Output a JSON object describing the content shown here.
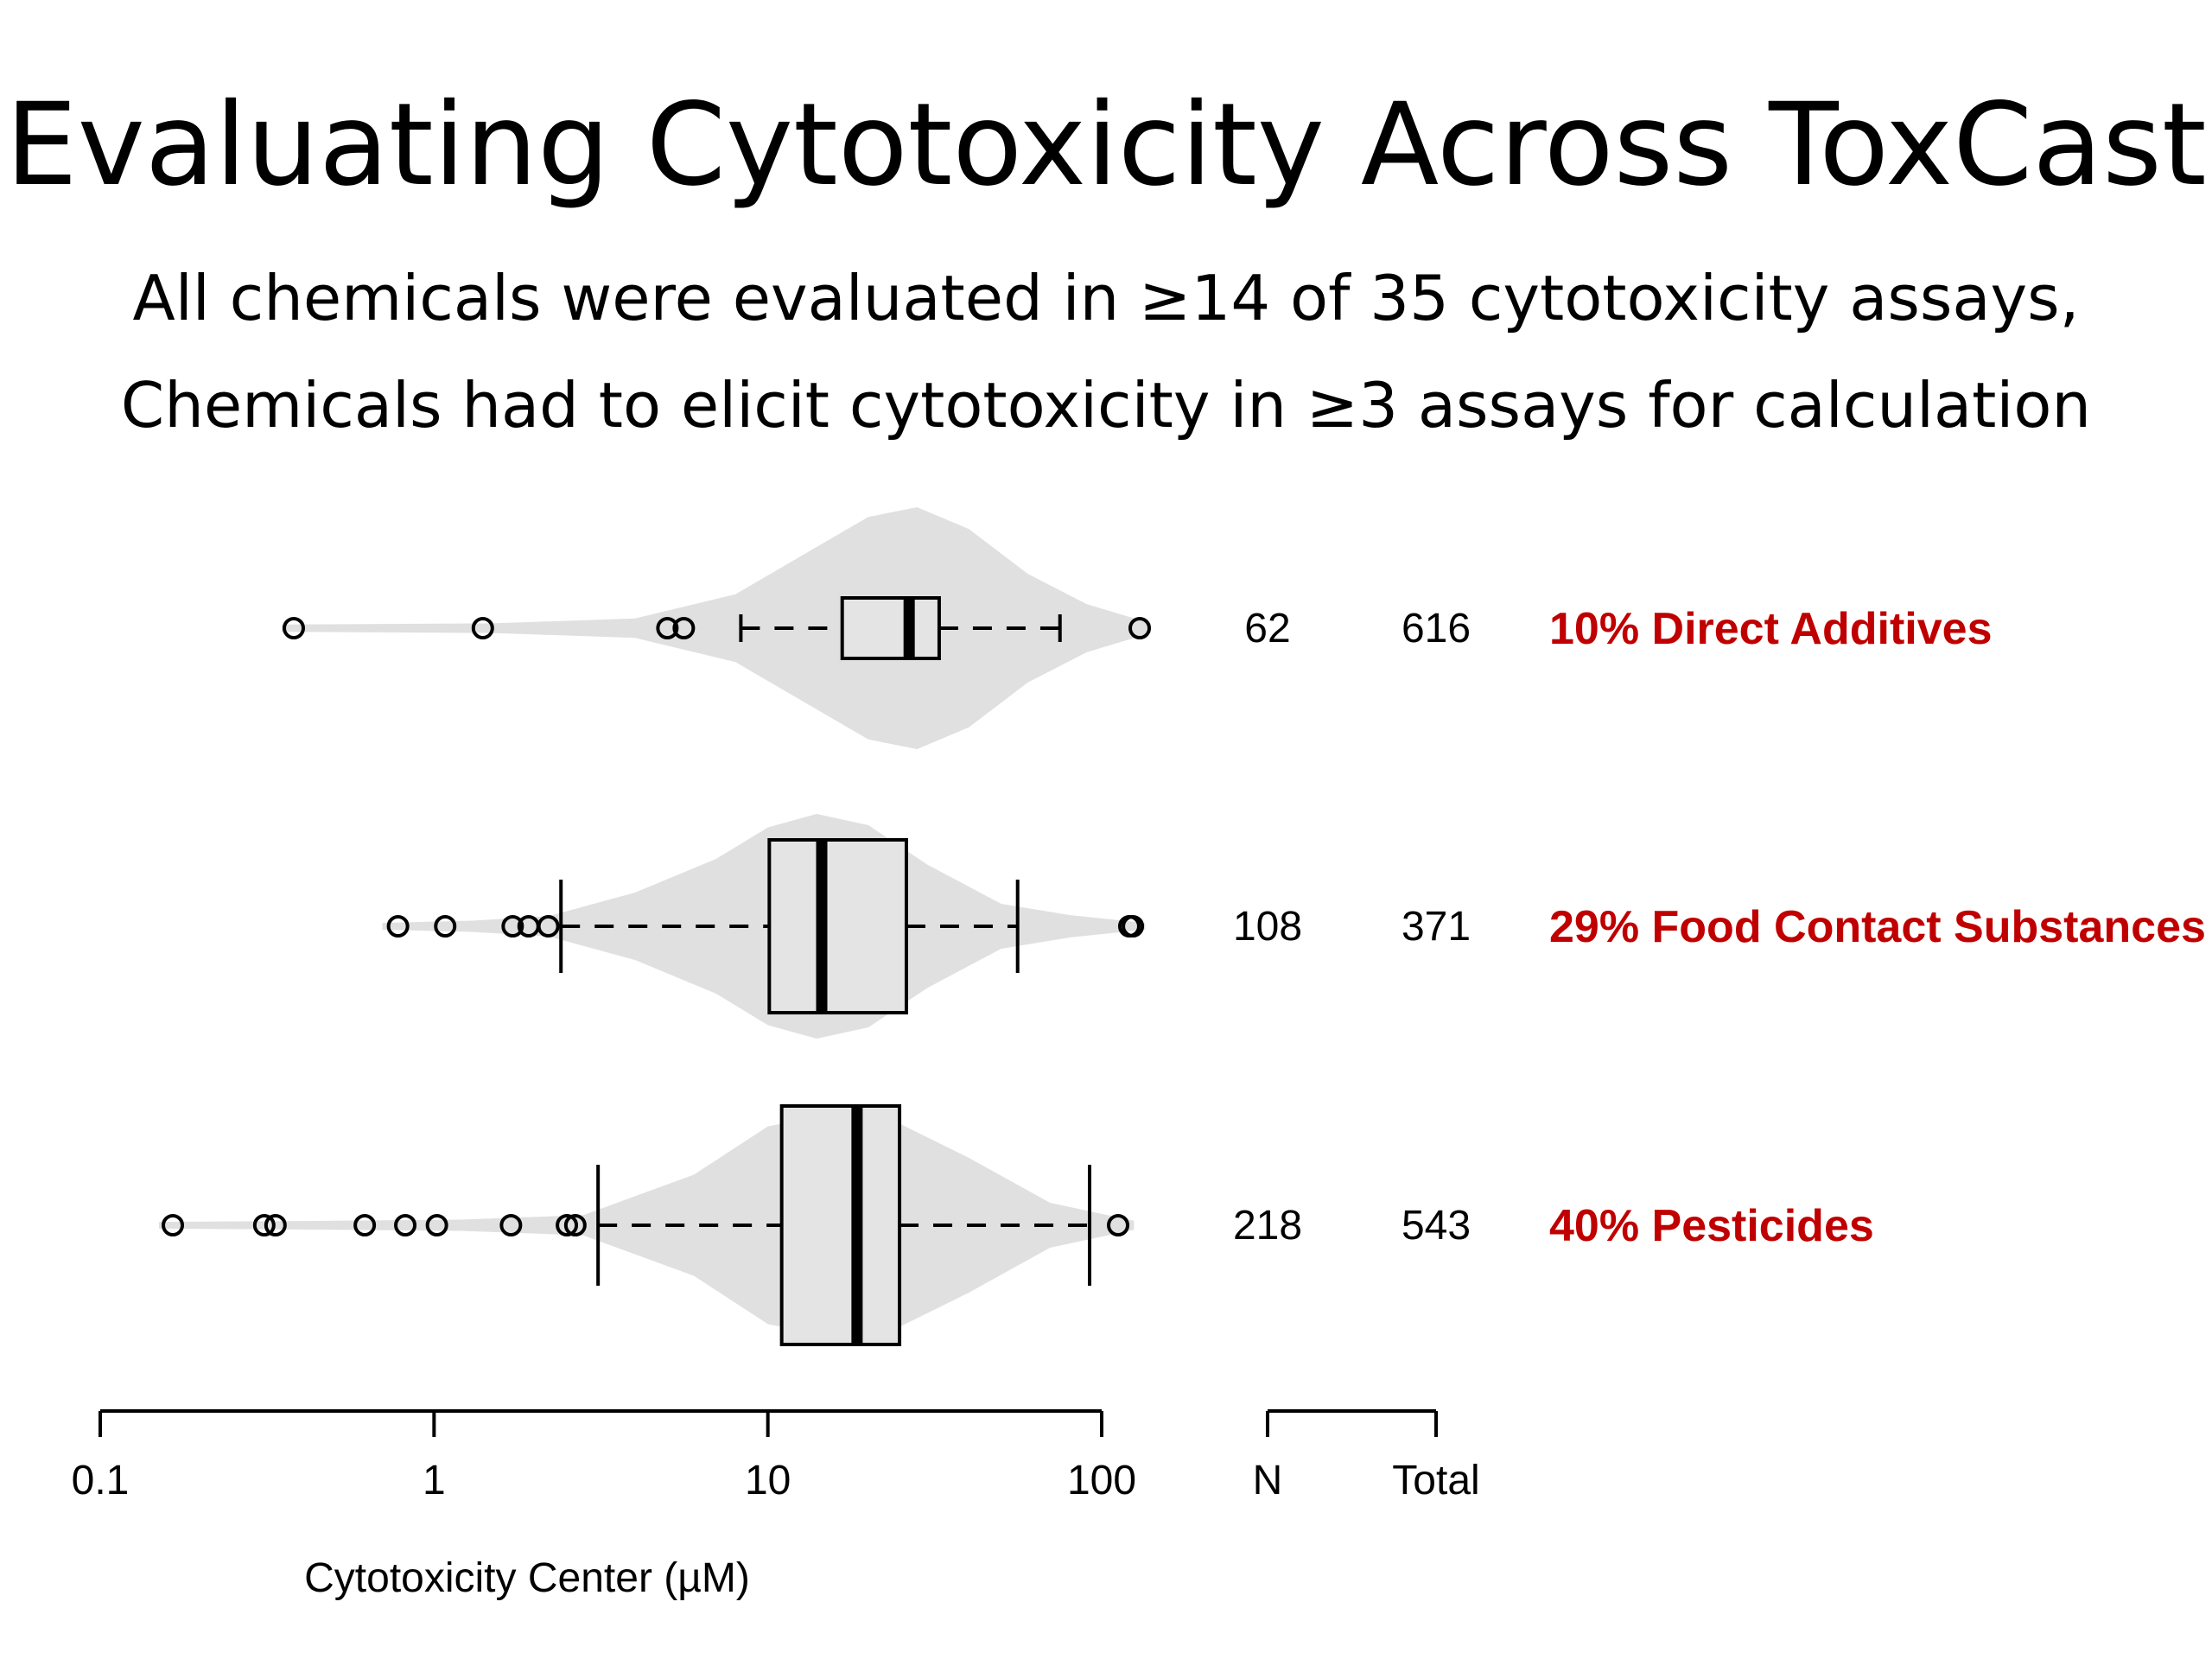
{
  "slide": {
    "title": "Evaluating Cytotoxicity Across ToxCast",
    "subtitle_lines": [
      "All chemicals were evaluated in ≥14 of 35 cytotoxicity assays,",
      "Chemicals had to elicit cytotoxicity in ≥3 assays for calculation"
    ]
  },
  "colors": {
    "violin_fill": "#e0e0e0",
    "box_fill": "#e4e4e4",
    "label_red": "#c00000",
    "ink": "#000000"
  },
  "chart_data": {
    "type": "violin-boxplot",
    "orientation": "horizontal",
    "x_scale": "log10",
    "xlabel": "Cytotoxicity Center (µM)",
    "xlim": [
      0.1,
      100
    ],
    "x_ticks": [
      0.1,
      1,
      10,
      100
    ],
    "x_tick_labels": [
      "0.1",
      "1",
      "10",
      "100"
    ],
    "table_headers": [
      "N",
      "Total"
    ],
    "series": [
      {
        "label": "10% Direct Additives",
        "n": "62",
        "total": "616",
        "whisker_low": 8.3,
        "q1": 16.7,
        "median": 26.5,
        "q3": 32.6,
        "whisker_high": 75.0,
        "outliers": [
          0.38,
          1.4,
          5.0,
          5.6,
          130
        ],
        "violin_density": [
          [
            0.35,
            0.03
          ],
          [
            1.5,
            0.04
          ],
          [
            4,
            0.08
          ],
          [
            8,
            0.28
          ],
          [
            13,
            0.62
          ],
          [
            20,
            0.92
          ],
          [
            28,
            1.0
          ],
          [
            40,
            0.82
          ],
          [
            60,
            0.45
          ],
          [
            90,
            0.2
          ],
          [
            140,
            0.04
          ]
        ]
      },
      {
        "label": "29% Food Contact Substances",
        "n": "108",
        "total": "371",
        "whisker_low": 2.4,
        "q1": 10.1,
        "median": 14.5,
        "q3": 26.0,
        "whisker_high": 56.0,
        "outliers": [
          0.78,
          1.08,
          1.72,
          1.92,
          2.2,
          121,
          124
        ],
        "violin_density": [
          [
            0.7,
            0.03
          ],
          [
            1.3,
            0.05
          ],
          [
            2.2,
            0.09
          ],
          [
            4,
            0.3
          ],
          [
            7,
            0.6
          ],
          [
            10,
            0.88
          ],
          [
            14,
            1.0
          ],
          [
            20,
            0.9
          ],
          [
            30,
            0.55
          ],
          [
            50,
            0.2
          ],
          [
            80,
            0.1
          ],
          [
            135,
            0.03
          ]
        ]
      },
      {
        "label": "40% Pesticides",
        "n": "218",
        "total": "543",
        "whisker_low": 3.1,
        "q1": 11.0,
        "median": 18.5,
        "q3": 24.8,
        "whisker_high": 92.0,
        "outliers": [
          0.165,
          0.31,
          0.335,
          0.62,
          0.82,
          1.02,
          1.7,
          2.5,
          2.65,
          112
        ],
        "violin_density": [
          [
            0.15,
            0.03
          ],
          [
            0.5,
            0.04
          ],
          [
            1.2,
            0.05
          ],
          [
            2.8,
            0.09
          ],
          [
            6,
            0.45
          ],
          [
            10,
            0.88
          ],
          [
            16,
            1.0
          ],
          [
            25,
            0.9
          ],
          [
            40,
            0.6
          ],
          [
            70,
            0.2
          ],
          [
            125,
            0.04
          ]
        ]
      }
    ]
  }
}
